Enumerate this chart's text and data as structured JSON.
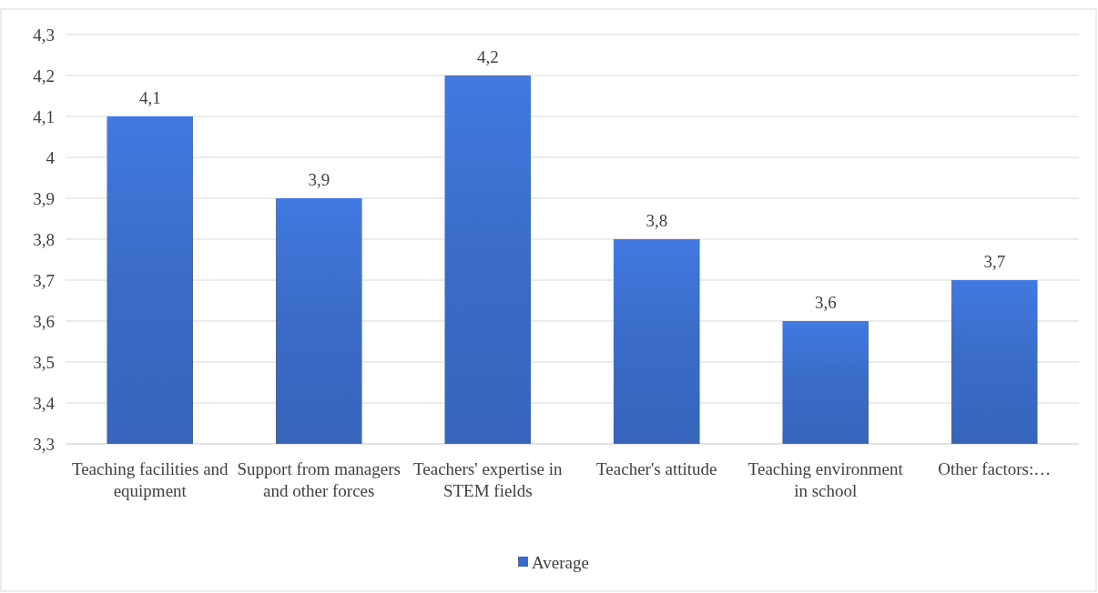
{
  "chart_data": {
    "type": "bar",
    "categories": [
      "Teaching facilities and equipment",
      "Support from managers and other forces",
      "Teachers' expertise in STEM fields",
      "Teacher's attitude",
      "Teaching environment in school",
      "Other factors:…"
    ],
    "series": [
      {
        "name": "Average",
        "color": "#3a6bc6",
        "values": [
          4.1,
          3.9,
          4.2,
          3.8,
          3.6,
          3.7
        ],
        "value_labels": [
          "4,1",
          "3,9",
          "4,2",
          "3,8",
          "3,6",
          "3,7"
        ]
      }
    ],
    "ylim": [
      3.3,
      4.3
    ],
    "yticks": [
      {
        "value": 3.3,
        "label": "3,3"
      },
      {
        "value": 3.4,
        "label": "3,4"
      },
      {
        "value": 3.5,
        "label": "3,5"
      },
      {
        "value": 3.6,
        "label": "3,6"
      },
      {
        "value": 3.7,
        "label": "3,7"
      },
      {
        "value": 3.8,
        "label": "3,8"
      },
      {
        "value": 3.9,
        "label": "3,9"
      },
      4,
      {
        "value": 4.1,
        "label": "4,1"
      },
      {
        "value": 4.2,
        "label": "4,2"
      },
      {
        "value": 4.3,
        "label": "4,3"
      }
    ],
    "grid": "y",
    "legend": "bottom"
  }
}
